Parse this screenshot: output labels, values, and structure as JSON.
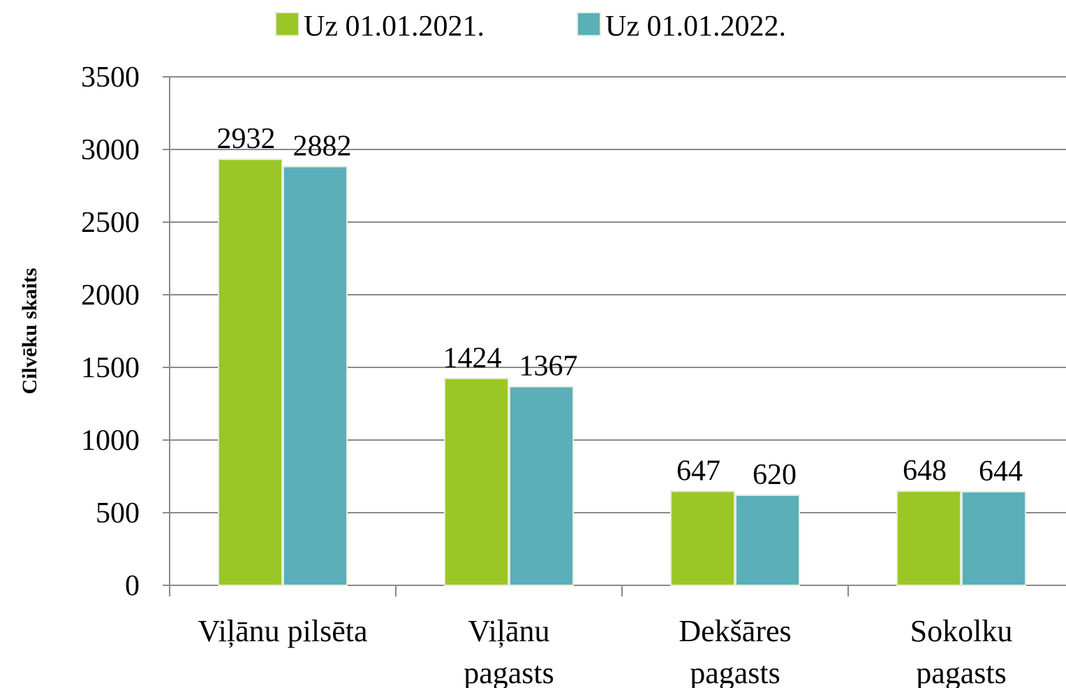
{
  "chart_data": {
    "type": "bar",
    "y_label": "Cilvēku skaits",
    "categories": [
      [
        "Viļānu pilsēta"
      ],
      [
        "Viļānu",
        "pagasts"
      ],
      [
        "Dekšāres",
        "pagasts"
      ],
      [
        "Sokolku",
        "pagasts"
      ]
    ],
    "series": [
      {
        "name": "Uz 01.01.2021.",
        "color": "#9ac726",
        "values": [
          2932,
          1424,
          647,
          648
        ]
      },
      {
        "name": "Uz 01.01.2022.",
        "color": "#5aafb8",
        "values": [
          2882,
          1367,
          620,
          644
        ]
      }
    ],
    "ylim": [
      0,
      3500
    ],
    "yticks": [
      0,
      500,
      1000,
      1500,
      2000,
      2500,
      3000,
      3500
    ],
    "grid": true,
    "legend": "top"
  }
}
